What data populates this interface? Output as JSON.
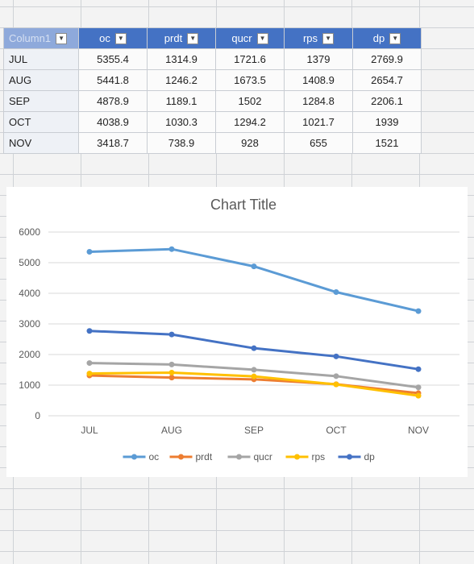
{
  "table": {
    "corner_header": "Column1",
    "columns": [
      "oc",
      "prdt",
      "qucr",
      "rps",
      "dp"
    ],
    "rows": [
      {
        "label": "JUL",
        "values": [
          "5355.4",
          "1314.9",
          "1721.6",
          "1379",
          "2769.9"
        ]
      },
      {
        "label": "AUG",
        "values": [
          "5441.8",
          "1246.2",
          "1673.5",
          "1408.9",
          "2654.7"
        ]
      },
      {
        "label": "SEP",
        "values": [
          "4878.9",
          "1189.1",
          "1502",
          "1284.8",
          "2206.1"
        ]
      },
      {
        "label": "OCT",
        "values": [
          "4038.9",
          "1030.3",
          "1294.2",
          "1021.7",
          "1939"
        ]
      },
      {
        "label": "NOV",
        "values": [
          "3418.7",
          "738.9",
          "928",
          "655",
          "1521"
        ]
      }
    ]
  },
  "chart_data": {
    "type": "line",
    "title": "Chart Title",
    "categories": [
      "JUL",
      "AUG",
      "SEP",
      "OCT",
      "NOV"
    ],
    "ylim": [
      0,
      6000
    ],
    "yticks": [
      0,
      1000,
      2000,
      3000,
      4000,
      5000,
      6000
    ],
    "grid": true,
    "legend_position": "bottom",
    "series": [
      {
        "name": "oc",
        "color": "#5b9bd5",
        "values": [
          5355.4,
          5441.8,
          4878.9,
          4038.9,
          3418.7
        ]
      },
      {
        "name": "prdt",
        "color": "#ed7d31",
        "values": [
          1314.9,
          1246.2,
          1189.1,
          1030.3,
          738.9
        ]
      },
      {
        "name": "qucr",
        "color": "#a5a5a5",
        "values": [
          1721.6,
          1673.5,
          1502,
          1294.2,
          928
        ]
      },
      {
        "name": "rps",
        "color": "#ffc000",
        "values": [
          1379,
          1408.9,
          1284.8,
          1021.7,
          655
        ]
      },
      {
        "name": "dp",
        "color": "#4472c4",
        "values": [
          2769.9,
          2654.7,
          2206.1,
          1939,
          1521
        ]
      }
    ]
  }
}
